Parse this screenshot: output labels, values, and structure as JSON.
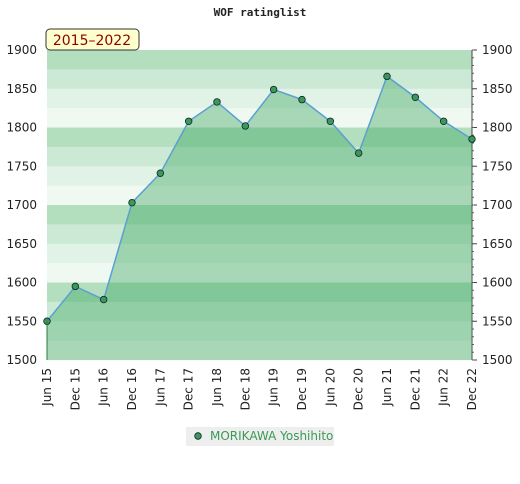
{
  "chart_data": {
    "type": "area",
    "title": "WOF ratinglist",
    "annotation": "2015–2022",
    "categories": [
      "Jun 15",
      "Dec 15",
      "Jun 16",
      "Dec 16",
      "Jun 17",
      "Dec 17",
      "Jun 18",
      "Dec 18",
      "Jun 19",
      "Dec 19",
      "Jun 20",
      "Dec 20",
      "Jun 21",
      "Dec 21",
      "Jun 22",
      "Dec 22"
    ],
    "series": [
      {
        "name": "MORIKAWA Yoshihito",
        "color": "#5aa0d0",
        "values": [
          1550,
          1595,
          1578,
          1703,
          1741,
          1808,
          1833,
          1802,
          1849,
          1836,
          1808,
          1767,
          1866,
          1839,
          1808,
          1785
        ]
      }
    ],
    "ylim": [
      1500,
      1900
    ],
    "yticks": [
      1500,
      1550,
      1600,
      1650,
      1700,
      1750,
      1800,
      1850,
      1900
    ]
  }
}
